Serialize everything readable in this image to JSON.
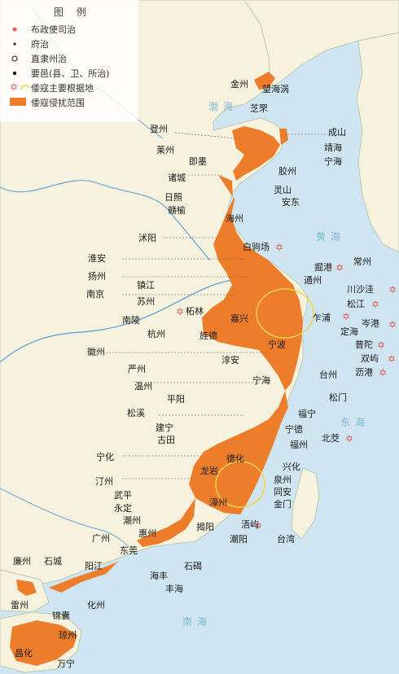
{
  "legend": {
    "title": "图 例",
    "items": [
      {
        "label": "布政使司治",
        "symbol": "red-dot"
      },
      {
        "label": "府治",
        "symbol": "small-dot"
      },
      {
        "label": "直隶州治",
        "symbol": "ring"
      },
      {
        "label": "要邑(县、卫、所治)",
        "symbol": "black-dot"
      },
      {
        "label": "倭寇主要根据地",
        "symbol": "star"
      },
      {
        "label": "倭寇侵扰范围",
        "symbol": "orange-box"
      }
    ]
  },
  "seas": {
    "bohai": "渤海",
    "huanghai": "黄海",
    "donghai": "东海",
    "nanhai": "南海"
  },
  "colors": {
    "sea": "#cfe6f2",
    "land": "#f7f2de",
    "raid": "#ee7d2b",
    "river": "#6aa6d8",
    "star": "#e15a55",
    "ring": "#f2d34a"
  },
  "places": {
    "jinzhou": "金州",
    "wanghaiwo": "望海涡",
    "zhifu": "芝罘",
    "dengzhou": "登州",
    "chengshan": "成山",
    "jinghai": "靖海",
    "ninghai_n": "宁海",
    "laizhou": "莱州",
    "jimo": "即墨",
    "jiaozhou": "胶州",
    "zhucheng": "诸城",
    "lingshan": "灵山",
    "rizhao": "日照",
    "anton": "安东",
    "ganyu": "赣榆",
    "haizhou": "海州",
    "shuyang": "沭阳",
    "baijuchang": "白驹场",
    "huaian": "淮安",
    "juegang": "掘港",
    "changzhou": "常州",
    "yangzhou": "扬州",
    "tongzhou": "通州",
    "zhenjiang": "镇江",
    "nanjing": "南京",
    "chuanshawa": "川沙洼",
    "suzhou": "苏州",
    "songjiang": "松江",
    "zhapu": "乍浦",
    "zhelin": "柘林",
    "nanling": "南陵",
    "jiaxing": "嘉兴",
    "dinghai": "定海",
    "cengang": "岑港",
    "hangzhou": "杭州",
    "jingde": "旌德",
    "putuo": "普陀",
    "huizhou_a": "徽州",
    "chunan": "淳安",
    "ningbo": "宁波",
    "shuangyu": "双屿",
    "ligang": "沥港",
    "yanzhou": "严州",
    "ninghai": "宁海",
    "taizhou": "台州",
    "wenzhou": "温州",
    "songmen": "松门",
    "pingyang": "平阳",
    "songxi": "松溪",
    "funing": "福宁",
    "jianning": "建宁",
    "ningde": "宁德",
    "gutian": "古田",
    "fuzhou": "福州",
    "beijiao": "北茭",
    "ninghua": "宁化",
    "dehua": "德化",
    "xinghua": "兴化",
    "longyan": "龙岩",
    "quanzhou": "泉州",
    "tingzhou": "汀州",
    "tongan": "同安",
    "jinmen": "金门",
    "wuping": "武平",
    "zhangzhou": "漳州",
    "yongding": "永定",
    "chaozhou": "潮州",
    "wuyu": "浯屿",
    "guangzhou": "广州",
    "huizhou": "惠州",
    "jieyang": "揭阳",
    "chaoyang": "潮阳",
    "taiwan": "台湾",
    "dongguan": "东莞",
    "lianzhou": "廉州",
    "shicheng": "石城",
    "haifeng": "海丰",
    "shijie": "石碣",
    "yangjiang": "阳江",
    "fenghai": "丰海",
    "leizhou": "雷州",
    "huazhou": "化州",
    "jinnang": "锦囊",
    "qiongzhou": "琼州",
    "changhua": "昌化",
    "wanning": "万宁"
  }
}
